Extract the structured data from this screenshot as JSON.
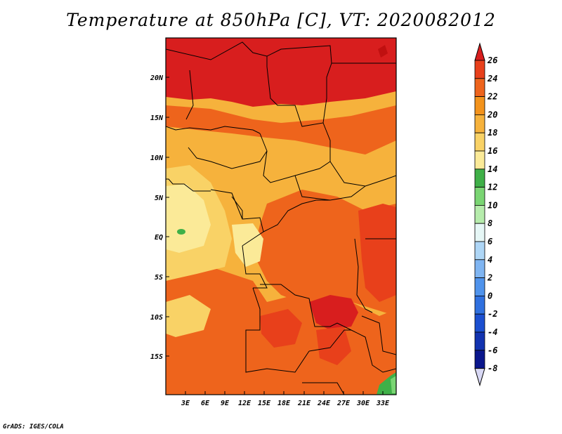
{
  "title": "Temperature at 850hPa [C], VT: 2020082012",
  "credit": "GrADS: IGES/COLA",
  "map": {
    "lon_range": [
      0,
      35
    ],
    "lat_range": [
      -20,
      25
    ],
    "lat_ticks": [
      "20N",
      "15N",
      "10N",
      "5N",
      "EQ",
      "5S",
      "10S",
      "15S"
    ],
    "lon_ticks": [
      "3E",
      "6E",
      "9E",
      "12E",
      "15E",
      "18E",
      "21E",
      "24E",
      "27E",
      "30E",
      "33E"
    ]
  },
  "colorbar": {
    "labels": [
      "26",
      "24",
      "22",
      "20",
      "18",
      "16",
      "14",
      "12",
      "10",
      "8",
      "6",
      "4",
      "2",
      "0",
      "-2",
      "-4",
      "-6",
      "-8"
    ],
    "colors": [
      "#d81e1e",
      "#e8401b",
      "#ee641c",
      "#f3931c",
      "#f6b23c",
      "#f9d266",
      "#fbea98",
      "#3fb048",
      "#7ad573",
      "#b6ecac",
      "#e6f7f6",
      "#aed6f6",
      "#7fb5f2",
      "#4f93ec",
      "#2f70df",
      "#1b4fd0",
      "#1233b0",
      "#0a168c",
      "#d8d8f4"
    ]
  }
}
